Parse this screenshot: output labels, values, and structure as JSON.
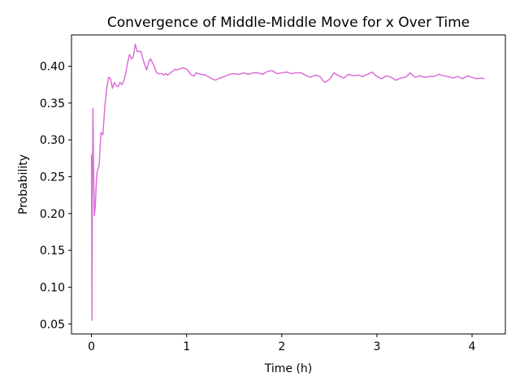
{
  "chart_data": {
    "type": "line",
    "title": "Convergence of Middle-Middle Move for x Over Time",
    "xlabel": "Time (h)",
    "ylabel": "Probability",
    "xlim": [
      -0.21,
      4.35
    ],
    "ylim": [
      0.0365,
      0.4425
    ],
    "xticks": [
      0,
      1,
      2,
      3,
      4
    ],
    "yticks": [
      0.05,
      0.1,
      0.15,
      0.2,
      0.25,
      0.3,
      0.35,
      0.4
    ],
    "ytick_labels": [
      "0.05",
      "0.10",
      "0.15",
      "0.20",
      "0.25",
      "0.30",
      "0.35",
      "0.40"
    ],
    "grid": false,
    "series": [
      {
        "color": "#da70d6",
        "x": [
          0.0,
          0.005,
          0.01,
          0.015,
          0.02,
          0.03,
          0.04,
          0.05,
          0.06,
          0.08,
          0.1,
          0.12,
          0.14,
          0.16,
          0.18,
          0.2,
          0.22,
          0.24,
          0.26,
          0.28,
          0.3,
          0.32,
          0.34,
          0.36,
          0.38,
          0.4,
          0.42,
          0.44,
          0.46,
          0.48,
          0.5,
          0.52,
          0.54,
          0.56,
          0.58,
          0.6,
          0.62,
          0.64,
          0.66,
          0.68,
          0.7,
          0.72,
          0.74,
          0.76,
          0.78,
          0.8,
          0.82,
          0.84,
          0.86,
          0.88,
          0.9,
          0.92,
          0.94,
          0.96,
          0.98,
          1.0,
          1.02,
          1.05,
          1.08,
          1.1,
          1.15,
          1.2,
          1.25,
          1.3,
          1.35,
          1.4,
          1.45,
          1.5,
          1.55,
          1.6,
          1.65,
          1.7,
          1.75,
          1.8,
          1.85,
          1.9,
          1.95,
          2.0,
          2.05,
          2.1,
          2.15,
          2.2,
          2.25,
          2.3,
          2.35,
          2.4,
          2.45,
          2.5,
          2.55,
          2.6,
          2.65,
          2.7,
          2.75,
          2.8,
          2.85,
          2.9,
          2.95,
          3.0,
          3.05,
          3.1,
          3.15,
          3.2,
          3.25,
          3.3,
          3.35,
          3.4,
          3.45,
          3.5,
          3.55,
          3.6,
          3.65,
          3.7,
          3.75,
          3.8,
          3.85,
          3.9,
          3.95,
          4.0,
          4.05,
          4.1,
          4.13
        ],
        "values": [
          0.28,
          0.055,
          0.25,
          0.343,
          0.28,
          0.197,
          0.21,
          0.24,
          0.257,
          0.265,
          0.31,
          0.307,
          0.345,
          0.37,
          0.385,
          0.383,
          0.37,
          0.378,
          0.374,
          0.372,
          0.378,
          0.375,
          0.38,
          0.39,
          0.405,
          0.416,
          0.41,
          0.413,
          0.43,
          0.42,
          0.42,
          0.42,
          0.41,
          0.402,
          0.395,
          0.405,
          0.41,
          0.405,
          0.4,
          0.392,
          0.39,
          0.39,
          0.39,
          0.388,
          0.39,
          0.388,
          0.39,
          0.392,
          0.394,
          0.396,
          0.395,
          0.396,
          0.397,
          0.398,
          0.397,
          0.396,
          0.393,
          0.388,
          0.387,
          0.391,
          0.389,
          0.388,
          0.384,
          0.381,
          0.384,
          0.386,
          0.389,
          0.39,
          0.389,
          0.391,
          0.389,
          0.391,
          0.391,
          0.389,
          0.393,
          0.394,
          0.39,
          0.391,
          0.392,
          0.39,
          0.391,
          0.391,
          0.388,
          0.385,
          0.388,
          0.386,
          0.378,
          0.382,
          0.391,
          0.387,
          0.384,
          0.389,
          0.387,
          0.388,
          0.386,
          0.389,
          0.392,
          0.386,
          0.383,
          0.387,
          0.385,
          0.381,
          0.384,
          0.385,
          0.391,
          0.385,
          0.387,
          0.385,
          0.386,
          0.386,
          0.389,
          0.387,
          0.386,
          0.384,
          0.386,
          0.383,
          0.387,
          0.385,
          0.383,
          0.384,
          0.383
        ]
      }
    ]
  }
}
